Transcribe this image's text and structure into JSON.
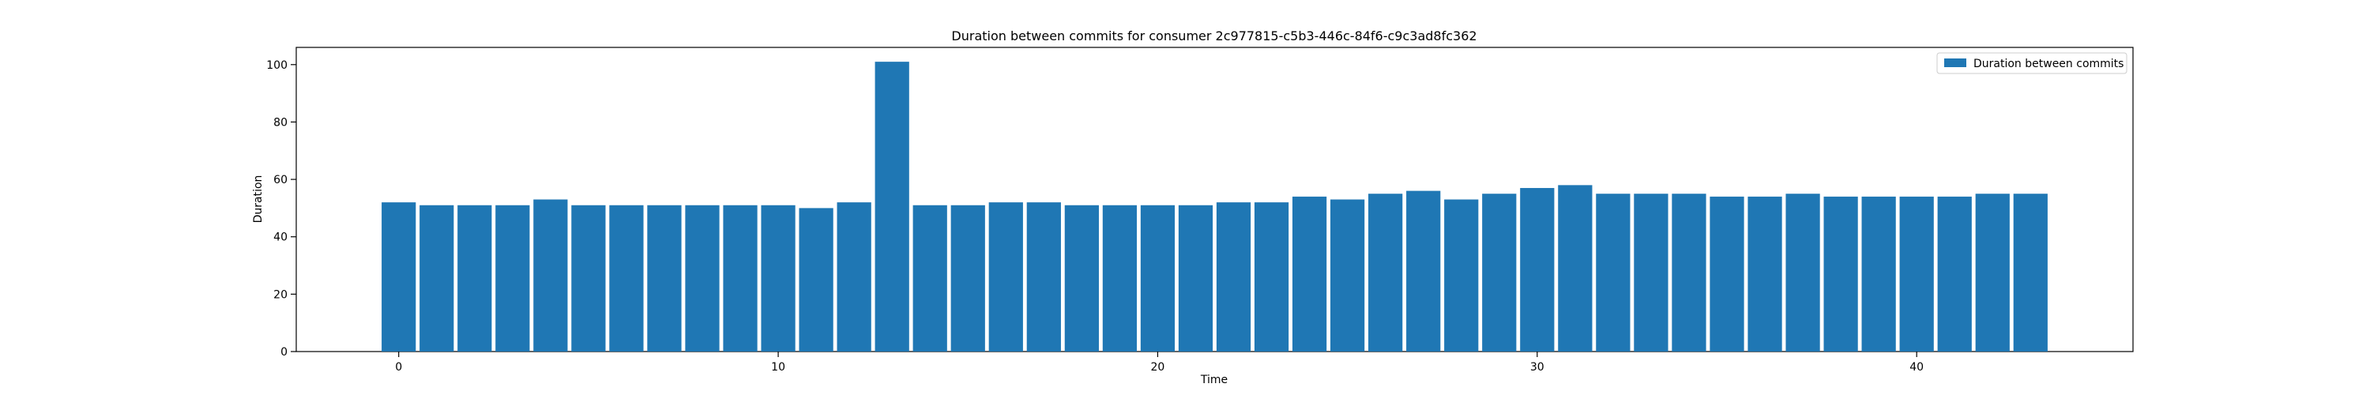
{
  "chart_data": {
    "type": "bar",
    "title": "Duration between commits for consumer 2c977815-c5b3-446c-84f6-c9c3ad8fc362",
    "xlabel": "Time",
    "ylabel": "Duration",
    "x": [
      0,
      1,
      2,
      3,
      4,
      5,
      6,
      7,
      8,
      9,
      10,
      11,
      12,
      13,
      14,
      15,
      16,
      17,
      18,
      19,
      20,
      21,
      22,
      23,
      24,
      25,
      26,
      27,
      28,
      29,
      30,
      31,
      32,
      33,
      34,
      35,
      36,
      37,
      38,
      39,
      40,
      41,
      42,
      43
    ],
    "series": [
      {
        "name": "Duration between commits",
        "values": [
          52,
          51,
          51,
          51,
          53,
          51,
          51,
          51,
          51,
          51,
          51,
          50,
          52,
          101,
          51,
          51,
          52,
          52,
          51,
          51,
          51,
          51,
          52,
          52,
          54,
          53,
          55,
          56,
          53,
          55,
          57,
          58,
          55,
          55,
          55,
          54,
          54,
          55,
          54,
          54,
          54,
          54,
          55,
          55
        ]
      }
    ],
    "xlim": [
      -2.7,
      45.7
    ],
    "ylim": [
      0,
      106
    ],
    "xticks": [
      "0",
      "10",
      "20",
      "30",
      "40"
    ],
    "yticks": [
      "0",
      "20",
      "40",
      "60",
      "80",
      "100"
    ],
    "grid": false,
    "legend_position": "top-right",
    "colors": {
      "bar": "#1f77b4"
    }
  }
}
